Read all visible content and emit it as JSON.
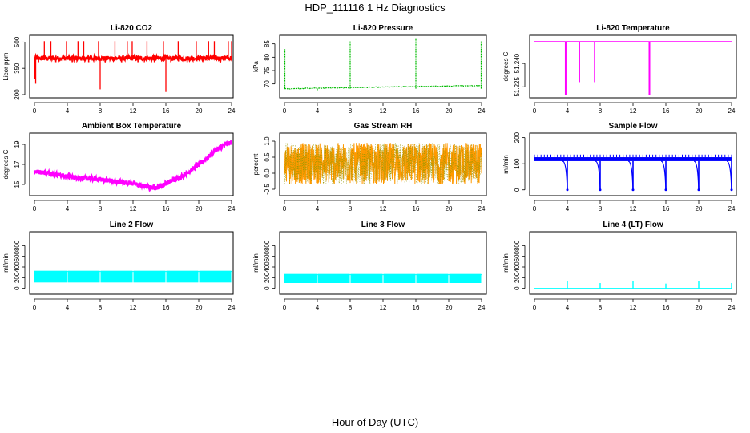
{
  "figure": {
    "title": "HDP_111116  1 Hz Diagnostics",
    "xlabel": "Hour of Day (UTC)"
  },
  "chart_data": [
    {
      "type": "line",
      "title": "Li-820 CO2",
      "ylabel": "Licor ppm",
      "color": "#ff0000",
      "xlim": [
        0,
        24
      ],
      "ylim": [
        200,
        520
      ],
      "xticks": [
        0,
        4,
        8,
        12,
        16,
        20,
        24
      ],
      "yticks": [
        200,
        350,
        500
      ],
      "ytick_labels": [
        "200",
        "350",
        "500"
      ],
      "baseline": 410,
      "band": [
        395,
        420
      ],
      "spikes": [
        {
          "x": 0.05,
          "y": 290
        },
        {
          "x": 0.15,
          "y": 262
        },
        {
          "x": 1.2,
          "y": 505
        },
        {
          "x": 2.0,
          "y": 505
        },
        {
          "x": 3.9,
          "y": 505
        },
        {
          "x": 5.3,
          "y": 505
        },
        {
          "x": 6.0,
          "y": 505
        },
        {
          "x": 7.8,
          "y": 505
        },
        {
          "x": 8.0,
          "y": 230
        },
        {
          "x": 9.8,
          "y": 505
        },
        {
          "x": 11.3,
          "y": 505
        },
        {
          "x": 11.9,
          "y": 505
        },
        {
          "x": 13.7,
          "y": 505
        },
        {
          "x": 15.7,
          "y": 505
        },
        {
          "x": 16.0,
          "y": 215
        },
        {
          "x": 17.5,
          "y": 505
        },
        {
          "x": 19.7,
          "y": 505
        },
        {
          "x": 21.2,
          "y": 505
        },
        {
          "x": 21.9,
          "y": 505
        },
        {
          "x": 23.6,
          "y": 505
        },
        {
          "x": 24.0,
          "y": 505
        }
      ],
      "dips": [
        0.5,
        2.6,
        4.6,
        6.6,
        8.6,
        10.6,
        12.6,
        14.6,
        16.6,
        18.6,
        20.6,
        22.6
      ],
      "dip_value": 385
    },
    {
      "type": "line",
      "title": "Li-820 Pressure",
      "ylabel": "kPa",
      "color": "#00bb00",
      "xlim": [
        0,
        24
      ],
      "ylim": [
        66,
        87
      ],
      "xticks": [
        0,
        4,
        8,
        12,
        16,
        20,
        24
      ],
      "yticks": [
        70,
        75,
        80,
        85
      ],
      "ytick_labels": [
        "70",
        "75",
        "80",
        "85"
      ],
      "baseline_start": 68.2,
      "baseline_end": 69.4,
      "steps": [
        {
          "x": 8.0,
          "y": 68.4
        },
        {
          "x": 16.0,
          "y": 68.9
        }
      ],
      "spikes": [
        {
          "x": 0.05,
          "y": 83
        },
        {
          "x": 4.0,
          "y": 67.2
        },
        {
          "x": 8.0,
          "y": 86
        },
        {
          "x": 16.0,
          "y": 87
        },
        {
          "x": 23.95,
          "y": 86
        }
      ]
    },
    {
      "type": "line",
      "title": "Li-820 Temperature",
      "ylabel": "degrees C",
      "color": "#ff00ff",
      "xlim": [
        0,
        24
      ],
      "ylim": [
        51.22,
        51.256
      ],
      "xticks": [
        0,
        4,
        8,
        12,
        16,
        20,
        24
      ],
      "yticks": [
        51.225,
        51.24
      ],
      "ytick_labels": [
        "51.225",
        "51.240"
      ],
      "baseline": 51.254,
      "drops": [
        {
          "x": 3.8,
          "y": 51.22
        },
        {
          "x": 5.5,
          "y": 51.228
        },
        {
          "x": 7.3,
          "y": 51.228
        },
        {
          "x": 14.0,
          "y": 51.22
        }
      ]
    },
    {
      "type": "line",
      "title": "Ambient Box Temperature",
      "ylabel": "degrees C",
      "color": "#ff00ff",
      "xlim": [
        0,
        24
      ],
      "ylim": [
        14.2,
        19.8
      ],
      "xticks": [
        0,
        4,
        8,
        12,
        16,
        20,
        24
      ],
      "yticks": [
        15,
        17,
        19
      ],
      "ytick_labels": [
        "15",
        "17",
        "19"
      ],
      "trend": [
        {
          "x": 0,
          "y": 16.3
        },
        {
          "x": 2,
          "y": 16.1
        },
        {
          "x": 4,
          "y": 15.8
        },
        {
          "x": 6,
          "y": 15.6
        },
        {
          "x": 8,
          "y": 15.5
        },
        {
          "x": 10,
          "y": 15.3
        },
        {
          "x": 12,
          "y": 15.1
        },
        {
          "x": 14,
          "y": 14.7
        },
        {
          "x": 15,
          "y": 14.7
        },
        {
          "x": 16,
          "y": 15.1
        },
        {
          "x": 18,
          "y": 15.8
        },
        {
          "x": 19,
          "y": 16.4
        },
        {
          "x": 20,
          "y": 17.0
        },
        {
          "x": 21,
          "y": 17.6
        },
        {
          "x": 22,
          "y": 18.4
        },
        {
          "x": 23,
          "y": 18.9
        },
        {
          "x": 24,
          "y": 19.2
        }
      ],
      "noise": 0.45
    },
    {
      "type": "line",
      "title": "Gas Stream RH",
      "ylabel": "percent",
      "color": "#ff9900",
      "color2": "#999900",
      "xlim": [
        0,
        24
      ],
      "ylim": [
        -0.6,
        1.15
      ],
      "xticks": [
        0,
        4,
        8,
        12,
        16,
        20,
        24
      ],
      "yticks": [
        -0.5,
        0.0,
        0.5,
        1.0
      ],
      "ytick_labels": [
        "-0.5",
        "0.0",
        "0.5",
        "1.0"
      ],
      "band": [
        -0.35,
        0.95
      ]
    },
    {
      "type": "line",
      "title": "Sample Flow",
      "ylabel": "ml/min",
      "color": "#0000ff",
      "xlim": [
        0,
        24
      ],
      "ylim": [
        -10,
        205
      ],
      "xticks": [
        0,
        4,
        8,
        12,
        16,
        20,
        24
      ],
      "yticks": [
        0,
        100,
        200
      ],
      "ytick_labels": [
        "0",
        "100",
        "200"
      ],
      "band": [
        110,
        125
      ],
      "spike_level": 135,
      "drops": [
        {
          "x": 4.0,
          "y": 0
        },
        {
          "x": 8.0,
          "y": 0
        },
        {
          "x": 12.0,
          "y": 0
        },
        {
          "x": 16.0,
          "y": 0
        },
        {
          "x": 20.0,
          "y": 0
        },
        {
          "x": 24.0,
          "y": 0
        }
      ]
    },
    {
      "type": "area",
      "title": "Line 2 Flow",
      "ylabel": "ml/min",
      "color": "#00ffff",
      "xlim": [
        0,
        24
      ],
      "ylim": [
        -50,
        1000
      ],
      "xticks": [
        0,
        4,
        8,
        12,
        16,
        20,
        24
      ],
      "yticks": [
        0,
        200,
        400,
        600,
        800
      ],
      "ytick_labels": [
        "0",
        "200",
        "400",
        "600",
        "800"
      ],
      "band": [
        110,
        330
      ],
      "gaps": [
        4.0,
        8.0,
        12.0,
        16.0,
        20.0
      ]
    },
    {
      "type": "area",
      "title": "Line 3 Flow",
      "ylabel": "ml/min",
      "color": "#00ffff",
      "xlim": [
        0,
        24
      ],
      "ylim": [
        -50,
        1000
      ],
      "xticks": [
        0,
        4,
        8,
        12,
        16,
        20,
        24
      ],
      "yticks": [
        0,
        200,
        400,
        600,
        800
      ],
      "ytick_labels": [
        "0",
        "200",
        "400",
        "600",
        "800"
      ],
      "band": [
        100,
        270
      ],
      "gaps": [
        4.0,
        8.0,
        12.0,
        16.0,
        20.0
      ]
    },
    {
      "type": "line",
      "title": "Line 4 (LT) Flow",
      "ylabel": "ml/min",
      "color": "#00ffff",
      "xlim": [
        0,
        24
      ],
      "ylim": [
        -50,
        1000
      ],
      "xticks": [
        0,
        4,
        8,
        12,
        16,
        20,
        24
      ],
      "yticks": [
        0,
        200,
        400,
        600,
        800
      ],
      "ytick_labels": [
        "0",
        "200",
        "400",
        "600",
        "800"
      ],
      "baseline": 0,
      "spikes": [
        {
          "x": 4.0,
          "y": 130
        },
        {
          "x": 8.0,
          "y": 100
        },
        {
          "x": 12.0,
          "y": 130
        },
        {
          "x": 16.0,
          "y": 90
        },
        {
          "x": 20.0,
          "y": 130
        },
        {
          "x": 24.0,
          "y": 100
        }
      ]
    }
  ]
}
